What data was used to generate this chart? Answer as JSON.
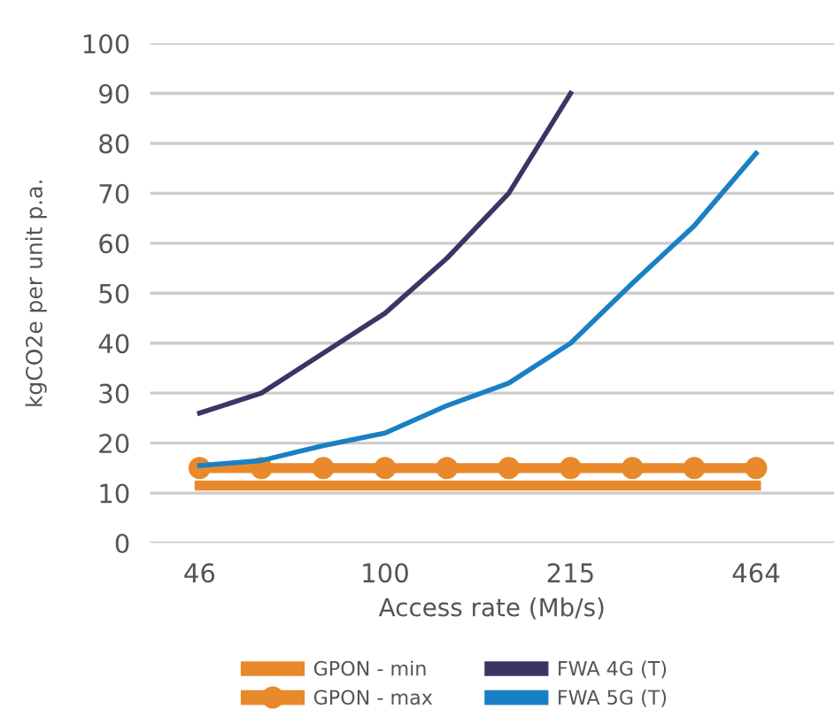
{
  "chart_data": {
    "type": "line",
    "xlabel": "Access rate (Mb/s)",
    "ylabel": "kgCO2e per unit p.a.",
    "categories": [
      "46",
      null,
      null,
      "100",
      null,
      null,
      "215",
      null,
      null,
      "464"
    ],
    "series": [
      {
        "name": "GPON - min",
        "color": "#e8892b",
        "marker": "none",
        "values": [
          11.5,
          11.5,
          11.5,
          11.5,
          11.5,
          11.5,
          11.5,
          11.5,
          11.5,
          11.5
        ]
      },
      {
        "name": "GPON - max",
        "color": "#e8892b",
        "marker": "circle",
        "values": [
          15,
          15,
          15,
          15,
          15,
          15,
          15,
          15,
          15,
          15
        ]
      },
      {
        "name": "FWA 4G (T)",
        "color": "#3d3466",
        "marker": "none",
        "values": [
          26,
          30,
          38,
          46,
          57,
          70,
          90,
          null,
          null,
          null
        ]
      },
      {
        "name": "FWA 5G (T)",
        "color": "#1a80c4",
        "marker": "none",
        "values": [
          15.5,
          16.5,
          19.5,
          22,
          27.5,
          32,
          40,
          52,
          63.5,
          78
        ]
      }
    ],
    "ylim": [
      0,
      100
    ],
    "yticks": [
      0,
      10,
      20,
      30,
      40,
      50,
      60,
      70,
      80,
      90,
      100
    ],
    "grid": "y",
    "legend": "bottom"
  }
}
